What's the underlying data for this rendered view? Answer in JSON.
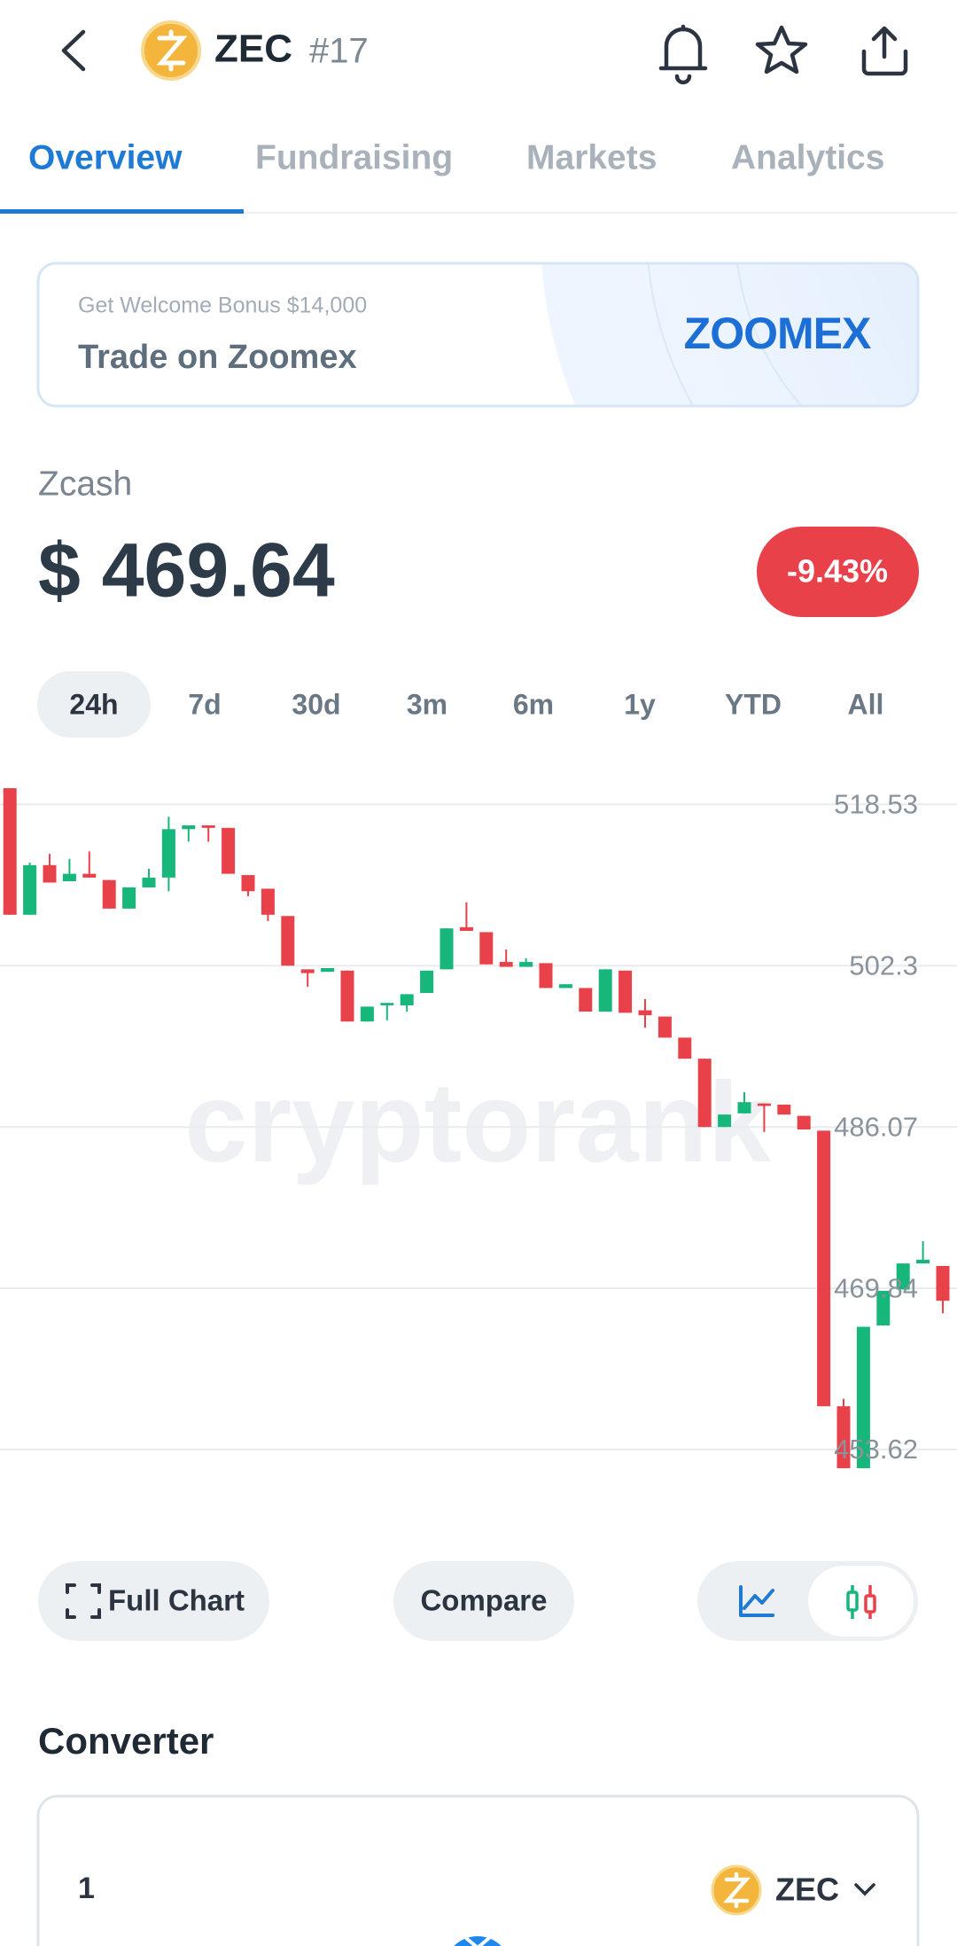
{
  "header": {
    "title": "ZEC",
    "rank": "#17"
  },
  "tabs": {
    "items": [
      "Overview",
      "Fundraising",
      "Markets",
      "Analytics"
    ],
    "active": 0
  },
  "banner": {
    "note": "Get Welcome Bonus $14,000",
    "title": "Trade on Zoomex",
    "brand": "ZOOMEX"
  },
  "coin": {
    "name": "Zcash",
    "price": "$ 469.64",
    "change": "-9.43%"
  },
  "ranges": {
    "items": [
      "24h",
      "7d",
      "30d",
      "3m",
      "6m",
      "1y",
      "YTD",
      "All"
    ],
    "active": 0
  },
  "chart_data": {
    "type": "candlestick",
    "watermark": "cryptorank",
    "open": [
      520.15,
      507.42,
      512.41,
      510.79,
      511.54,
      510.91,
      508.04,
      510.17,
      511.16,
      516.03,
      516.41,
      516.16,
      511.41,
      510.04,
      507.29,
      501.93,
      501.68,
      501.8,
      496.68,
      498.31,
      498.31,
      499.55,
      501.93,
      506.17,
      505.67,
      502.67,
      502.18,
      502.55,
      500.05,
      500.05,
      497.68,
      501.8,
      497.81,
      497.18,
      495.06,
      492.94,
      486.07,
      487.44,
      488.44,
      488.32,
      487.19,
      485.7,
      457.98,
      451.74,
      466.1,
      469.72,
      472.34,
      472.09
    ],
    "high": [
      520.15,
      512.66,
      513.54,
      513.04,
      513.79,
      510.91,
      510.17,
      512.04,
      517.28,
      516.41,
      516.41,
      516.16,
      511.41,
      510.04,
      507.29,
      501.93,
      502.05,
      501.8,
      498.18,
      498.55,
      499.43,
      501.8,
      506.05,
      508.67,
      505.67,
      503.92,
      503.05,
      502.55,
      500.43,
      500.05,
      501.93,
      501.8,
      498.93,
      497.18,
      495.06,
      492.94,
      487.32,
      489.57,
      488.44,
      488.32,
      487.19,
      485.7,
      458.73,
      465.97,
      469.59,
      472.34,
      474.58,
      472.09
    ],
    "low": [
      507.42,
      507.42,
      510.66,
      510.79,
      511.16,
      508.04,
      508.04,
      510.17,
      509.79,
      514.78,
      514.78,
      511.54,
      509.29,
      506.79,
      502.3,
      500.18,
      501.68,
      496.68,
      496.68,
      496.81,
      497.68,
      499.55,
      501.93,
      505.8,
      502.43,
      502.18,
      502.18,
      500.05,
      500.05,
      497.68,
      497.68,
      497.56,
      496.06,
      495.06,
      492.94,
      486.07,
      486.07,
      487.44,
      485.57,
      487.32,
      485.82,
      457.98,
      451.74,
      451.74,
      466.1,
      469.72,
      472.34,
      467.34
    ],
    "close": [
      507.42,
      512.41,
      510.66,
      511.54,
      511.16,
      508.04,
      510.17,
      511.16,
      516.03,
      516.41,
      516.16,
      511.54,
      509.79,
      507.42,
      502.3,
      501.55,
      502.05,
      496.68,
      498.18,
      498.55,
      499.43,
      501.8,
      506.05,
      505.8,
      502.43,
      502.18,
      502.67,
      500.05,
      500.43,
      497.68,
      501.93,
      497.56,
      497.31,
      495.06,
      492.94,
      486.07,
      487.32,
      488.57,
      488.19,
      487.32,
      485.82,
      457.98,
      451.74,
      465.97,
      469.59,
      472.34,
      472.71,
      468.59
    ],
    "ylim": [
      450.86,
      520.78
    ],
    "yticks": [
      518.53,
      502.3,
      486.07,
      469.84,
      453.62
    ],
    "grid": true,
    "up_color": "#17b67b",
    "down_color": "#e8414a"
  },
  "buttons": {
    "full_chart": "Full Chart",
    "compare": "Compare"
  },
  "converter": {
    "title": "Converter",
    "amount": "1",
    "currency": "ZEC"
  }
}
